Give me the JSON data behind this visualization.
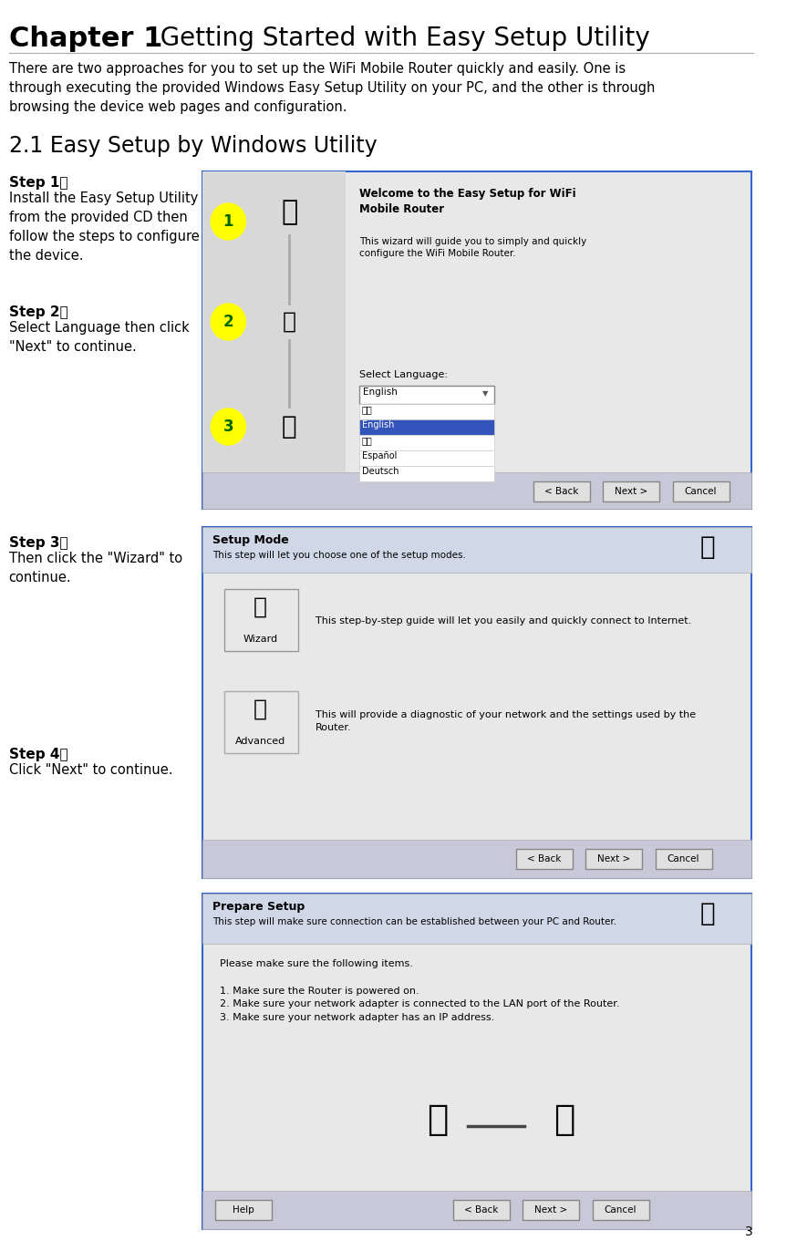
{
  "bg_color": "#ffffff",
  "chapter_title_bold": "Chapter 1",
  "chapter_title_rest": "  Getting Started with Easy Setup Utility",
  "intro_text": "There are two approaches for you to set up the WiFi Mobile Router quickly and easily. One is\nthrough executing the provided Windows Easy Setup Utility on your PC, and the other is through\nbrowsing the device web pages and configuration.",
  "section_title": "2.1 Easy Setup by Windows Utility",
  "step1_label": "Step 1：",
  "step1_text": "Install the Easy Setup Utility\nfrom the provided CD then\nfollow the steps to configure\nthe device.",
  "step2_label": "Step 2：",
  "step2_text": "Select Language then click\n\"Next\" to continue.",
  "step3_label": "Step 3：",
  "step3_text": "Then click the \"Wizard\" to\ncontinue.",
  "step4_label": "Step 4：",
  "step4_text": "Click \"Next\" to continue.",
  "page_number": "3",
  "screenshot1_title": "Welcome to the Easy Setup for WiFi\nMobile Router",
  "screenshot1_body": "This wizard will guide you to simply and quickly\nconfigure the WiFi Mobile Router.",
  "screenshot1_lang_label": "Select Language:",
  "screenshot1_lang_texts": [
    "简中",
    "English",
    "繁中",
    "Español",
    "Deutsch"
  ],
  "screenshot1_buttons": [
    "< Back",
    "Next >",
    "Cancel"
  ],
  "screenshot2_title": "Setup Mode",
  "screenshot2_subtitle": "This step will let you choose one of the setup modes.",
  "screenshot2_wizard_text": "This step-by-step guide will let you easily and quickly connect to Internet.",
  "screenshot2_advanced_text": "This will provide a diagnostic of your network and the settings used by the\nRouter.",
  "screenshot2_buttons": [
    "< Back",
    "Next >",
    "Cancel"
  ],
  "screenshot3_title": "Prepare Setup",
  "screenshot3_subtitle": "This step will make sure connection can be established between your PC and Router.",
  "screenshot3_body": "Please make sure the following items.\n\n1. Make sure the Router is powered on.\n2. Make sure your network adapter is connected to the LAN port of the Router.\n3. Make sure your network adapter has an IP address.",
  "screenshot3_buttons": [
    "Help",
    "< Back",
    "Next >",
    "Cancel"
  ],
  "screenshot_border_color": "#3366cc",
  "screenshot_bg": "#e8e8e8",
  "screenshot_header_bg": "#d0d8e8",
  "step_label_color": "#000000",
  "yellow_circle_color": "#ffff00",
  "highlight_blue": "#3355aa"
}
